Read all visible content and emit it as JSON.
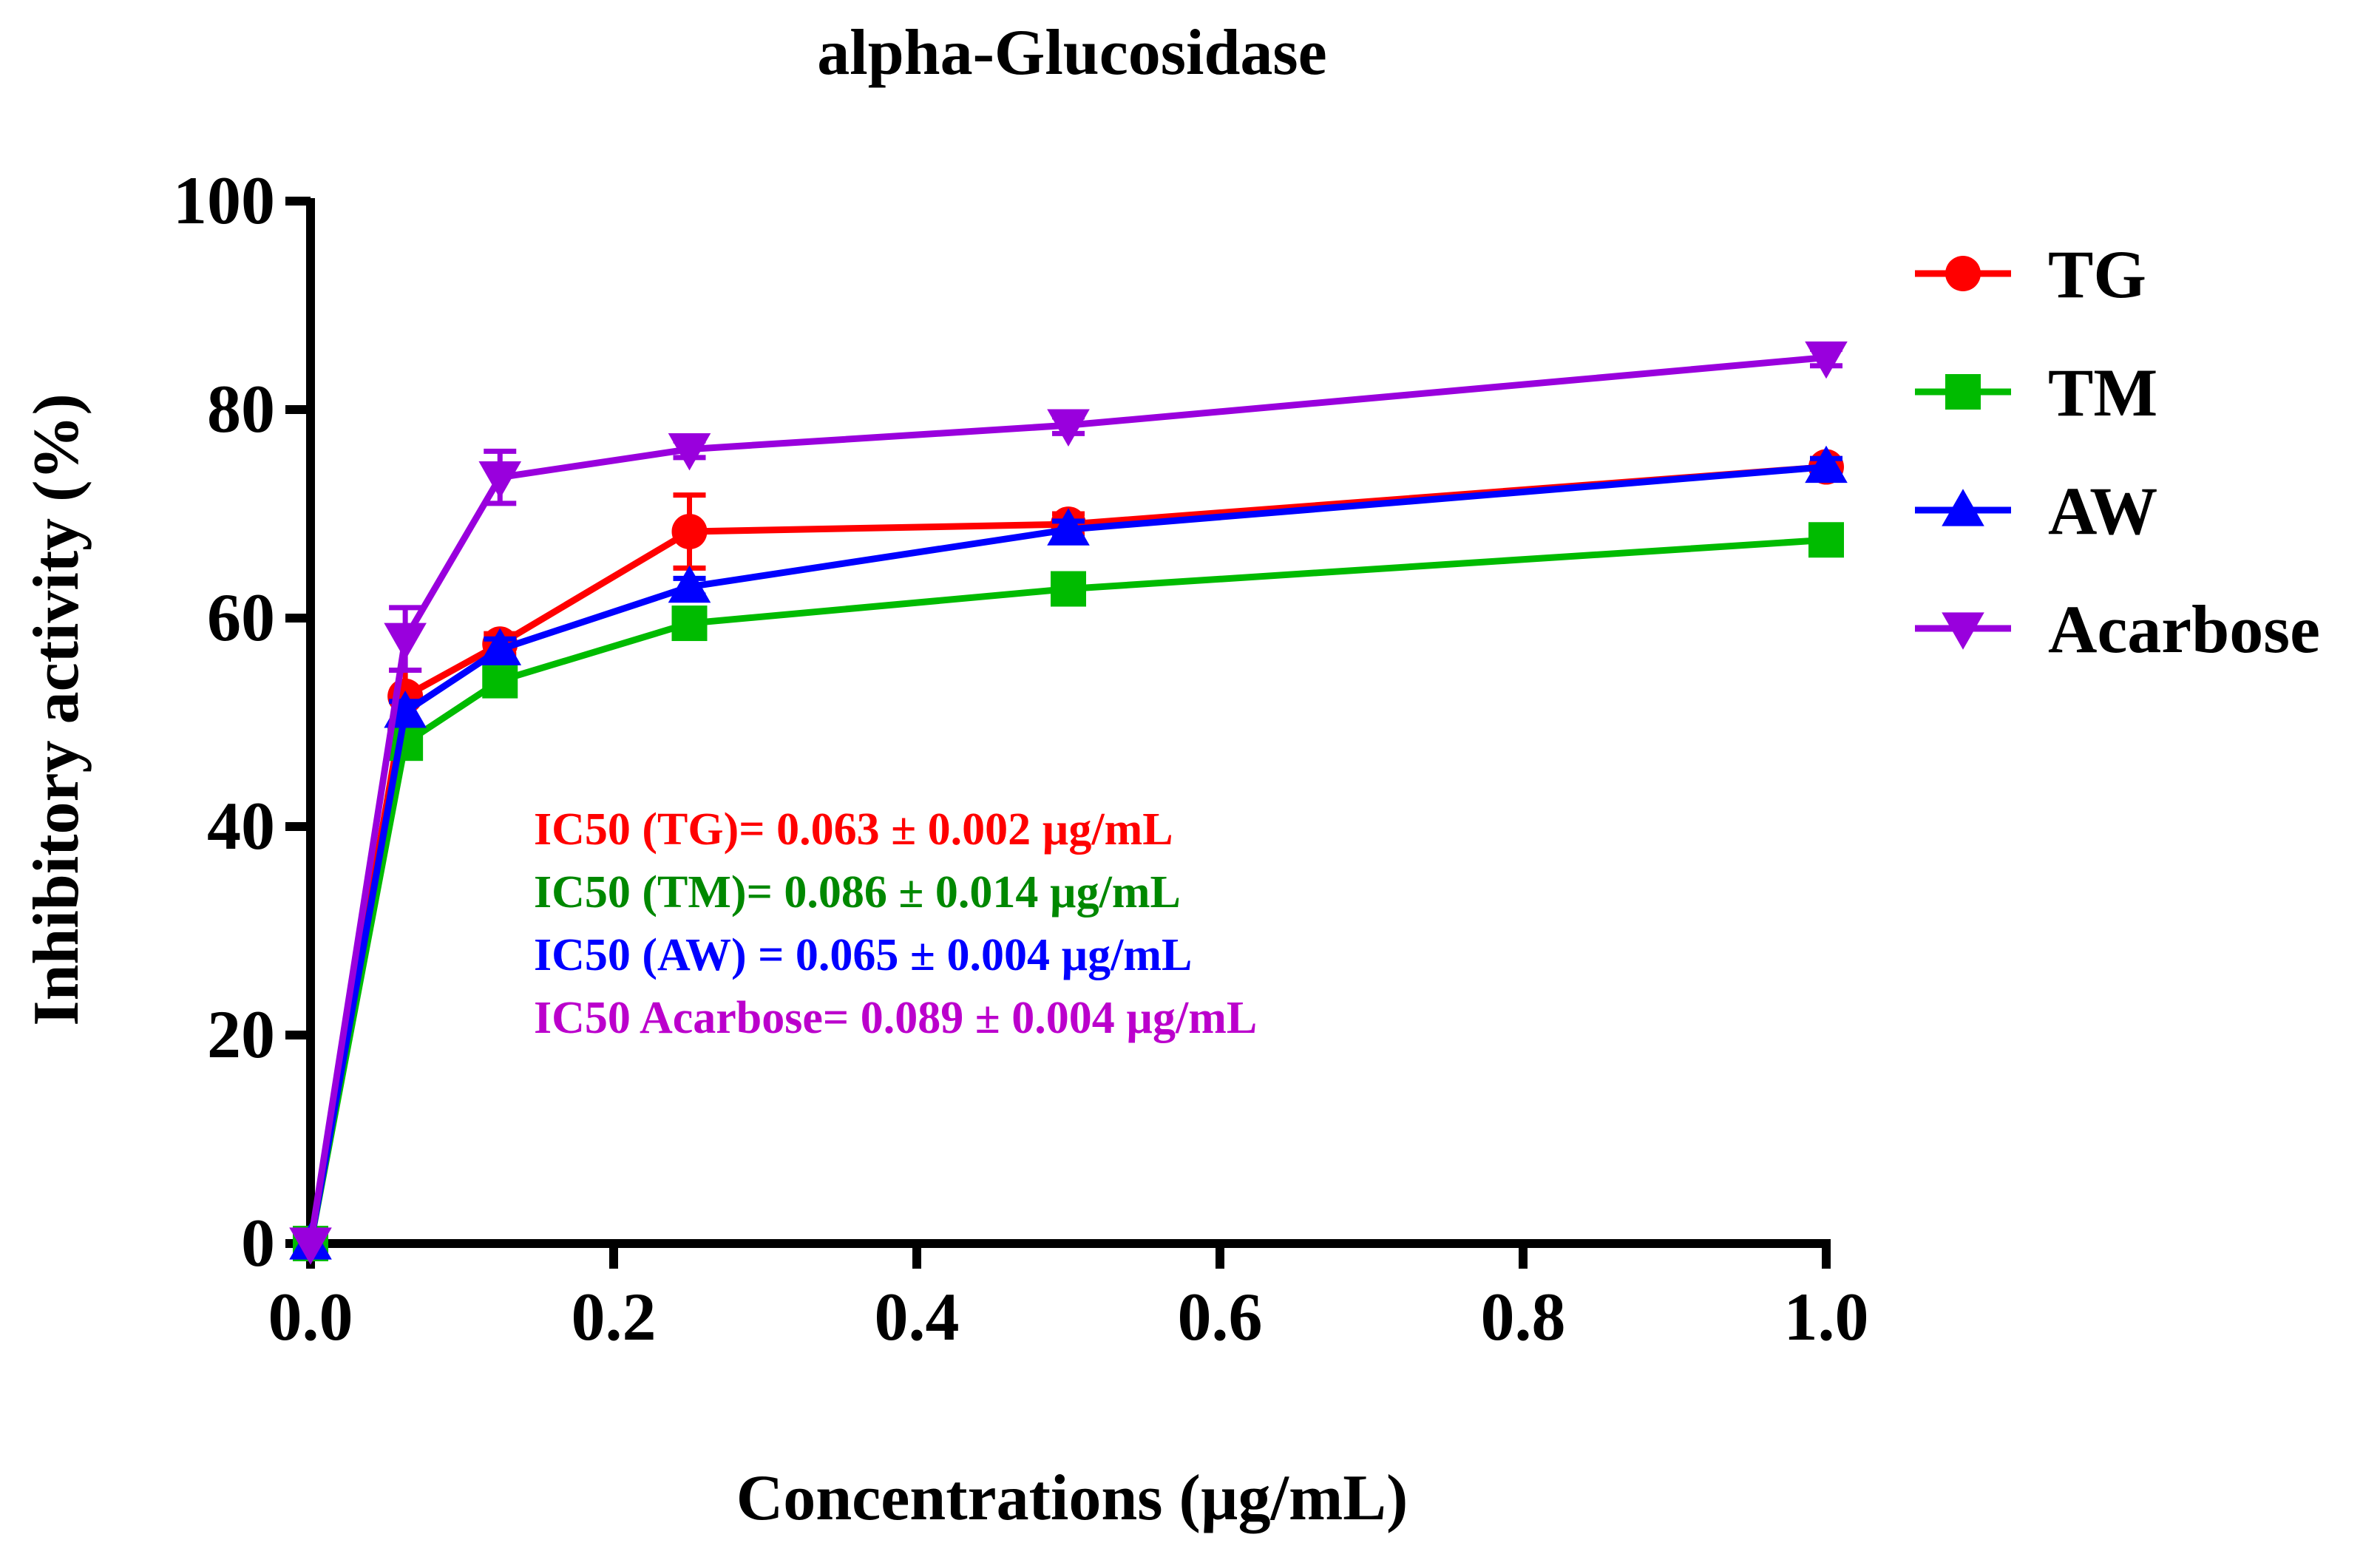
{
  "chart_data": {
    "type": "line",
    "title": "alpha-Glucosidase",
    "xlabel": "Concentrations (µg/mL)",
    "ylabel": "Inhibitory activity (%)",
    "xlim": [
      0,
      1.0
    ],
    "ylim": [
      0,
      100
    ],
    "x_ticks": [
      0.0,
      0.2,
      0.4,
      0.6,
      0.8,
      1.0
    ],
    "x_tick_labels": [
      "0.0",
      "0.2",
      "0.4",
      "0.6",
      "0.8",
      "1.0"
    ],
    "y_ticks": [
      0,
      20,
      40,
      60,
      80,
      100
    ],
    "y_tick_labels": [
      "0",
      "20",
      "40",
      "60",
      "80",
      "100"
    ],
    "legend_position": "top-right",
    "x": [
      0,
      0.0625,
      0.125,
      0.25,
      0.5,
      1.0
    ],
    "series": [
      {
        "name": "TG",
        "color": "#ff0000",
        "marker": "circle",
        "values": [
          0,
          52.5,
          57.5,
          68.3,
          69.0,
          74.5
        ],
        "errors": [
          0,
          2.5,
          1.0,
          3.5,
          1.0,
          0.8
        ]
      },
      {
        "name": "TM",
        "color": "#00bb00",
        "marker": "square",
        "values": [
          0,
          48.0,
          54.0,
          59.5,
          62.8,
          67.5
        ],
        "errors": [
          0,
          1.0,
          1.0,
          0.8,
          0.8,
          0.8
        ]
      },
      {
        "name": "AW",
        "color": "#0000ff",
        "marker": "triangle-up",
        "values": [
          0,
          51.0,
          57.0,
          63.0,
          68.5,
          74.5
        ],
        "errors": [
          0,
          1.0,
          1.0,
          0.8,
          0.8,
          0.8
        ]
      },
      {
        "name": "Acarbose",
        "color": "#9900dd",
        "marker": "triangle-down",
        "values": [
          0,
          58.0,
          73.5,
          76.2,
          78.5,
          85.0
        ],
        "errors": [
          0,
          3.0,
          2.5,
          0.8,
          0.8,
          0.8
        ]
      }
    ],
    "annotations": [
      {
        "text": "IC50  (TG)= 0.063 ± 0.002 µg/mL",
        "color": "#ff0000"
      },
      {
        "text": "IC50  (TM)= 0.086 ± 0.014 µg/mL",
        "color": "#008800"
      },
      {
        "text": "IC50  (AW) = 0.065 ± 0.004 µg/mL",
        "color": "#0000ff"
      },
      {
        "text": "IC50 Acarbose= 0.089 ± 0.004 µg/mL",
        "color": "#bb00cc"
      }
    ]
  }
}
